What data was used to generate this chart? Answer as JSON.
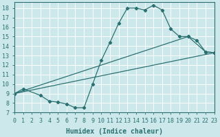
{
  "xlabel": "Humidex (Indice chaleur)",
  "bg_color": "#cce8eb",
  "line_color": "#2a7070",
  "grid_color": "#b0d8dc",
  "xlim": [
    0,
    23
  ],
  "ylim": [
    7,
    18.5
  ],
  "xticks": [
    0,
    1,
    2,
    3,
    4,
    5,
    6,
    7,
    8,
    9,
    10,
    11,
    12,
    13,
    14,
    15,
    16,
    17,
    18,
    19,
    20,
    21,
    22,
    23
  ],
  "yticks": [
    7,
    8,
    9,
    10,
    11,
    12,
    13,
    14,
    15,
    16,
    17,
    18
  ],
  "line1_x": [
    0,
    1,
    3,
    4,
    5,
    6,
    7,
    8,
    9,
    10,
    11,
    12,
    13,
    14,
    15,
    16,
    17,
    18,
    19,
    20,
    21,
    22,
    23
  ],
  "line1_y": [
    9.0,
    9.5,
    8.8,
    8.2,
    8.1,
    7.9,
    7.5,
    7.5,
    10.0,
    12.5,
    14.4,
    16.4,
    18.0,
    18.0,
    17.8,
    18.3,
    17.8,
    15.8,
    15.0,
    15.0,
    14.6,
    13.4,
    13.3
  ],
  "line2_x": [
    0,
    23
  ],
  "line2_y": [
    9.0,
    13.3
  ],
  "line3_x": [
    0,
    20,
    22,
    23
  ],
  "line3_y": [
    9.0,
    15.0,
    13.4,
    13.3
  ],
  "font_family": "monospace",
  "xlabel_fontsize": 7,
  "tick_fontsize": 6
}
